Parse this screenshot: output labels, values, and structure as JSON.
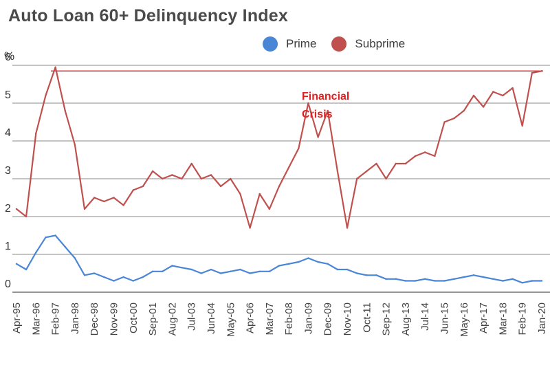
{
  "chart_data": {
    "type": "line",
    "title": "Auto Loan 60+ Delinquency Index",
    "ylabel": "%",
    "ylim": [
      0,
      6
    ],
    "yticks": [
      0,
      1,
      2,
      3,
      4,
      5,
      6
    ],
    "grid": "horizontal",
    "legend_position": "top-center",
    "x_tick_labels": [
      "Apr-95",
      "Mar-96",
      "Feb-97",
      "Jan-98",
      "Dec-98",
      "Nov-99",
      "Oct-00",
      "Sep-01",
      "Aug-02",
      "Jul-03",
      "Jun-04",
      "May-05",
      "Apr-06",
      "Mar-07",
      "Feb-08",
      "Jan-09",
      "Dec-09",
      "Nov-10",
      "Oct-11",
      "Sep-12",
      "Aug-13",
      "Jul-14",
      "Jun-15",
      "May-16",
      "Apr-17",
      "Mar-18",
      "Feb-19",
      "Jan-20"
    ],
    "series": [
      {
        "name": "Prime",
        "color": "#4a86d6",
        "x": [
          "Apr-95",
          "Oct-95",
          "Mar-96",
          "Sep-96",
          "Feb-97",
          "Aug-97",
          "Jan-98",
          "Jul-98",
          "Dec-98",
          "Jun-99",
          "Nov-99",
          "May-00",
          "Oct-00",
          "Apr-01",
          "Sep-01",
          "Mar-02",
          "Aug-02",
          "Feb-03",
          "Jul-03",
          "Jan-04",
          "Jun-04",
          "Dec-04",
          "May-05",
          "Nov-05",
          "Apr-06",
          "Oct-06",
          "Mar-07",
          "Sep-07",
          "Feb-08",
          "Aug-08",
          "Jan-09",
          "Jul-09",
          "Dec-09",
          "Jun-10",
          "Nov-10",
          "May-11",
          "Oct-11",
          "Apr-12",
          "Sep-12",
          "Mar-13",
          "Aug-13",
          "Feb-14",
          "Jul-14",
          "Jan-15",
          "Jun-15",
          "Dec-15",
          "May-16",
          "Nov-16",
          "Apr-17",
          "Oct-17",
          "Mar-18",
          "Sep-18",
          "Feb-19",
          "Aug-19",
          "Jan-20"
        ],
        "values": [
          0.75,
          0.6,
          1.05,
          1.45,
          1.5,
          1.2,
          0.9,
          0.45,
          0.5,
          0.4,
          0.3,
          0.4,
          0.3,
          0.4,
          0.55,
          0.55,
          0.7,
          0.65,
          0.6,
          0.5,
          0.6,
          0.5,
          0.55,
          0.6,
          0.5,
          0.55,
          0.55,
          0.7,
          0.75,
          0.8,
          0.9,
          0.8,
          0.75,
          0.6,
          0.6,
          0.5,
          0.45,
          0.45,
          0.35,
          0.35,
          0.3,
          0.3,
          0.35,
          0.3,
          0.3,
          0.35,
          0.4,
          0.45,
          0.4,
          0.35,
          0.3,
          0.35,
          0.25,
          0.3,
          0.3
        ]
      },
      {
        "name": "Subprime",
        "color": "#c0504d",
        "x": [
          "Apr-95",
          "Oct-95",
          "Mar-96",
          "Sep-96",
          "Feb-97",
          "Aug-97",
          "Jan-98",
          "Jul-98",
          "Dec-98",
          "Jun-99",
          "Nov-99",
          "May-00",
          "Oct-00",
          "Apr-01",
          "Sep-01",
          "Mar-02",
          "Aug-02",
          "Feb-03",
          "Jul-03",
          "Jan-04",
          "Jun-04",
          "Dec-04",
          "May-05",
          "Nov-05",
          "Apr-06",
          "Oct-06",
          "Mar-07",
          "Sep-07",
          "Feb-08",
          "Aug-08",
          "Jan-09",
          "Jul-09",
          "Dec-09",
          "Jun-10",
          "Nov-10",
          "May-11",
          "Oct-11",
          "Apr-12",
          "Sep-12",
          "Mar-13",
          "Aug-13",
          "Feb-14",
          "Jul-14",
          "Jan-15",
          "Jun-15",
          "Dec-15",
          "May-16",
          "Nov-16",
          "Apr-17",
          "Oct-17",
          "Mar-18",
          "Sep-18",
          "Feb-19",
          "Aug-19",
          "Jan-20"
        ],
        "values": [
          2.2,
          2.0,
          4.2,
          5.2,
          5.95,
          4.8,
          3.9,
          2.2,
          2.5,
          2.4,
          2.5,
          2.3,
          2.7,
          2.8,
          3.2,
          3.0,
          3.1,
          3.0,
          3.4,
          3.0,
          3.1,
          2.8,
          3.0,
          2.6,
          1.7,
          2.6,
          2.2,
          2.8,
          3.3,
          3.8,
          5.0,
          4.1,
          4.8,
          3.2,
          1.7,
          3.0,
          3.2,
          3.4,
          3.0,
          3.4,
          3.4,
          3.6,
          3.7,
          3.6,
          4.5,
          4.6,
          4.8,
          5.2,
          4.9,
          5.3,
          5.2,
          5.4,
          4.4,
          5.8,
          5.85
        ]
      }
    ],
    "reference_line": {
      "value": 5.85,
      "color": "#e03030"
    },
    "annotation": {
      "lines": [
        "Financial",
        "Crisis"
      ],
      "color": "#e02020"
    }
  }
}
